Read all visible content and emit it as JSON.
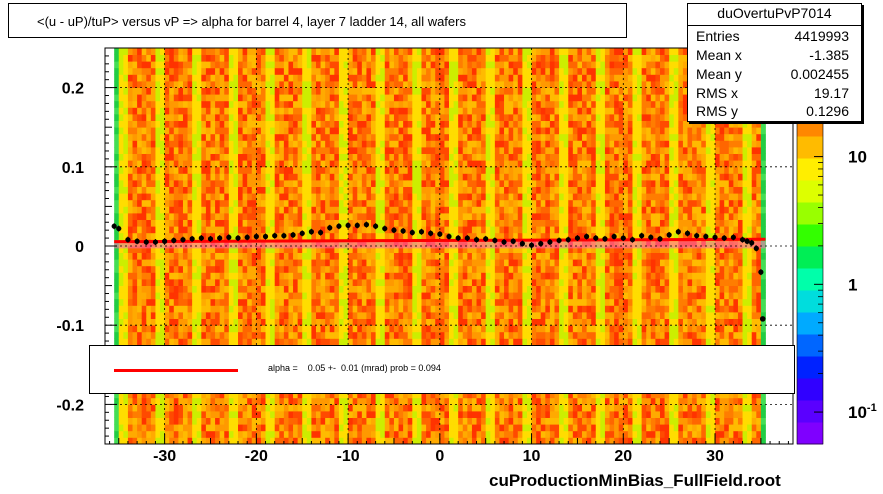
{
  "title": "<(u - uP)/tuP>  versus   vP => alpha for barrel 4, layer 7 ladder 14, all wafers",
  "stats": {
    "name": "duOvertuPvP7014",
    "rows": [
      {
        "key": "Entries",
        "value": "4419993"
      },
      {
        "key": "Mean x",
        "value": "-1.385"
      },
      {
        "key": "Mean y",
        "value": "0.002455"
      },
      {
        "key": "RMS x",
        "value": "19.17"
      },
      {
        "key": "RMS y",
        "value": "0.1296"
      }
    ]
  },
  "legend": {
    "text": "alpha =    0.05 +-  0.01 (mrad) prob = 0.094",
    "line_color": "#ff0000"
  },
  "footer": "cuProductionMinBias_FullField.root",
  "chart_data": {
    "type": "heatmap",
    "xlim": [
      -36.5,
      38.5
    ],
    "ylim": [
      -0.25,
      0.25
    ],
    "x_ticks": [
      -30,
      -20,
      -10,
      0,
      10,
      20,
      30
    ],
    "x_tick_labels": [
      "-30",
      "-20",
      "-10",
      "0",
      "10",
      "20",
      "30"
    ],
    "y_ticks": [
      0.2,
      0.1,
      0,
      -0.1,
      -0.2
    ],
    "y_tick_labels": [
      "0.2",
      "0.1",
      "0",
      "-0.1",
      "-0.2"
    ],
    "z_scale": "log",
    "z_ticks": [
      {
        "value": 10,
        "label": "10"
      },
      {
        "value": 1,
        "label": "1"
      },
      {
        "value": 0.1,
        "label": "10-1"
      }
    ],
    "grid": true,
    "fit_line": {
      "x": [
        -35.5,
        35.5
      ],
      "y": [
        0.0055,
        0.0085
      ],
      "color": "#ff0000"
    },
    "profile_points": {
      "x": [
        -35.5,
        -35,
        -34,
        -33,
        -32,
        -31,
        -30,
        -29,
        -28,
        -27,
        -26,
        -25,
        -24,
        -23,
        -22,
        -21,
        -20,
        -19,
        -18,
        -17,
        -16,
        -15,
        -14,
        -13,
        -12,
        -11,
        -10,
        -9,
        -8,
        -7,
        -6,
        -5,
        -4,
        -3,
        -2,
        -1,
        0,
        1,
        2,
        3,
        4,
        5,
        6,
        7,
        8,
        9,
        10,
        11,
        12,
        13,
        14,
        15,
        16,
        17,
        18,
        19,
        20,
        21,
        22,
        23,
        24,
        25,
        26,
        27,
        28,
        29,
        30,
        31,
        32,
        33,
        33.5,
        34,
        34.5,
        35
      ],
      "y": [
        0.025,
        0.022,
        0.008,
        0.006,
        0.005,
        0.005,
        0.006,
        0.007,
        0.008,
        0.009,
        0.01,
        0.009,
        0.01,
        0.011,
        0.01,
        0.011,
        0.012,
        0.012,
        0.013,
        0.013,
        0.014,
        0.016,
        0.018,
        0.017,
        0.023,
        0.025,
        0.026,
        0.026,
        0.027,
        0.025,
        0.022,
        0.02,
        0.019,
        0.017,
        0.018,
        0.016,
        0.015,
        0.012,
        0.01,
        0.01,
        0.008,
        0.009,
        0.007,
        0.005,
        0.006,
        0.003,
        0.001,
        0.003,
        0.005,
        0.007,
        0.008,
        0.01,
        0.012,
        0.01,
        0.009,
        0.012,
        0.01,
        0.008,
        0.013,
        0.011,
        0.009,
        0.014,
        0.018,
        0.016,
        0.013,
        0.012,
        0.011,
        0.01,
        0.011,
        0.008,
        0.006,
        0.004,
        -0.003,
        -0.033
      ],
      "outlier": {
        "x": 35.2,
        "y": -0.092
      }
    }
  }
}
